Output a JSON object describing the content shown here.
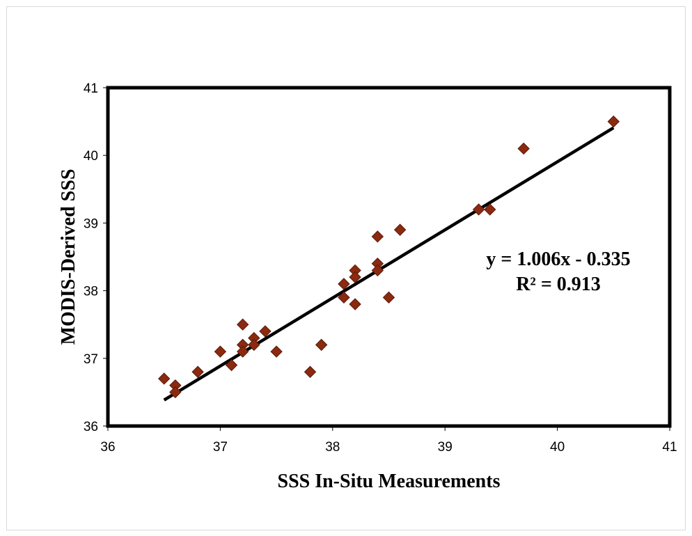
{
  "chart_data": {
    "type": "scatter",
    "title": "",
    "xlabel": "SSS In-Situ Measurements",
    "ylabel": "MODIS-Derived SSS",
    "xlim": [
      36,
      41
    ],
    "ylim": [
      36,
      41
    ],
    "xticks": [
      "36",
      "37",
      "38",
      "39",
      "40",
      "41"
    ],
    "yticks": [
      "36",
      "37",
      "38",
      "39",
      "40",
      "41"
    ],
    "grid": false,
    "legend": "none",
    "marker": "diamond",
    "marker_color": "#8B2A10",
    "series": [
      {
        "points": [
          [
            36.5,
            36.7
          ],
          [
            36.6,
            36.6
          ],
          [
            36.6,
            36.5
          ],
          [
            36.8,
            36.8
          ],
          [
            37.0,
            37.1
          ],
          [
            37.1,
            36.9
          ],
          [
            37.2,
            37.5
          ],
          [
            37.2,
            37.2
          ],
          [
            37.2,
            37.1
          ],
          [
            37.3,
            37.3
          ],
          [
            37.3,
            37.2
          ],
          [
            37.4,
            37.4
          ],
          [
            37.5,
            37.1
          ],
          [
            37.8,
            36.8
          ],
          [
            37.9,
            37.2
          ],
          [
            38.1,
            38.1
          ],
          [
            38.1,
            37.9
          ],
          [
            38.2,
            38.3
          ],
          [
            38.2,
            38.2
          ],
          [
            38.2,
            37.8
          ],
          [
            38.4,
            38.8
          ],
          [
            38.4,
            38.4
          ],
          [
            38.4,
            38.3
          ],
          [
            38.5,
            37.9
          ],
          [
            38.6,
            38.9
          ],
          [
            39.3,
            39.2
          ],
          [
            39.4,
            39.2
          ],
          [
            39.7,
            40.1
          ],
          [
            40.5,
            40.5
          ]
        ]
      }
    ],
    "trendline": {
      "slope": 1.006,
      "intercept": -0.335,
      "x_range": [
        36.5,
        40.5
      ],
      "color": "#000000"
    },
    "annotations": {
      "equation": "y = 1.006x - 0.335",
      "r_squared": "R² = 0.913"
    }
  }
}
